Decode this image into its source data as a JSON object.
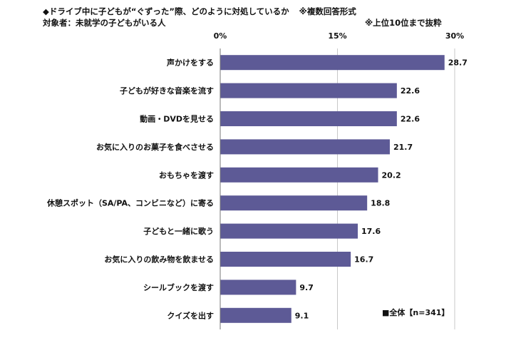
{
  "header": {
    "question": "◆ドライブ中に子どもが“ぐずった”際、どのように対処しているか",
    "format_note": "※複数回答形式",
    "respondents": "対象者：未就学の子どもがいる人",
    "top_note": "※上位10位まで抜粋"
  },
  "chart_data": {
    "type": "bar",
    "orientation": "horizontal",
    "categories": [
      "声かけをする",
      "子どもが好きな音楽を流す",
      "動画・DVDを見せる",
      "お気に入りのお菓子を食べさせる",
      "おもちゃを渡す",
      "休憩スポット（SA/PA、コンビニなど）に寄る",
      "子どもと一緒に歌う",
      "お気に入りの飲み物を飲ませる",
      "シールブックを渡す",
      "クイズを出す"
    ],
    "values": [
      28.7,
      22.6,
      22.6,
      21.7,
      20.2,
      18.8,
      17.6,
      16.7,
      9.7,
      9.1
    ],
    "xlim": [
      0,
      30
    ],
    "ticks": [
      0,
      15,
      30
    ],
    "tick_labels": [
      "0%",
      "15%",
      "30%"
    ],
    "grid": true,
    "legend": "bottom-right",
    "series": [
      {
        "name": "■全体【n=341】",
        "values": [
          28.7,
          22.6,
          22.6,
          21.7,
          20.2,
          18.8,
          17.6,
          16.7,
          9.7,
          9.1
        ]
      }
    ],
    "colors": {
      "bar": "#5d5a96",
      "grid": "#c8c8c8"
    }
  }
}
